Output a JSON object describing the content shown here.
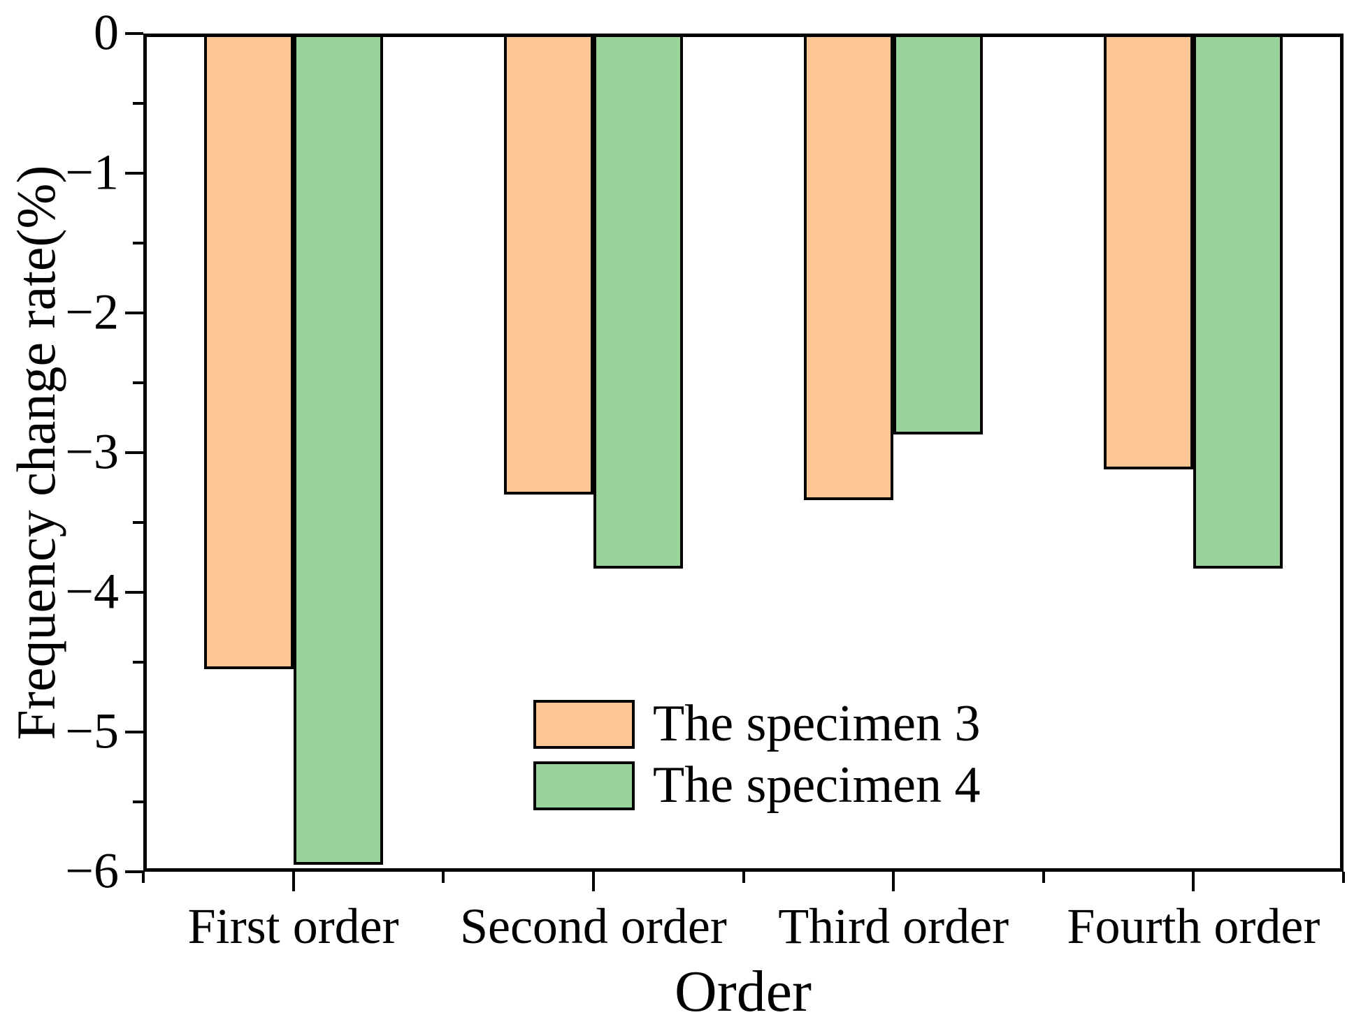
{
  "chart_data": {
    "type": "bar",
    "orientation": "vertical-negative",
    "categories": [
      "First order",
      "Second order",
      "Third order",
      "Fourth order"
    ],
    "series": [
      {
        "name": "The specimen 3",
        "color": "#FCC795",
        "values": [
          -4.55,
          -3.3,
          -3.34,
          -3.12
        ]
      },
      {
        "name": "The specimen 4",
        "color": "#9AD49B",
        "values": [
          -5.95,
          -3.83,
          -2.87,
          -3.83
        ]
      }
    ],
    "title": "",
    "xlabel": "Order",
    "ylabel": "Frequency change rate(%)",
    "ylim": [
      -6,
      0
    ],
    "yticks": [
      0,
      -1,
      -2,
      -3,
      -4,
      -5,
      -6
    ],
    "ytick_labels": [
      "0",
      "−1",
      "−2",
      "−3",
      "−4",
      "−5",
      "−6"
    ],
    "y_minor_tick_step": 0.5,
    "x_minor_ticks_at_category_boundaries": true,
    "grid": false,
    "legend_position": "inside-lower-center",
    "bar_border_color": "#000000",
    "frame_color": "#000000",
    "background_color": "#FFFFFF"
  }
}
